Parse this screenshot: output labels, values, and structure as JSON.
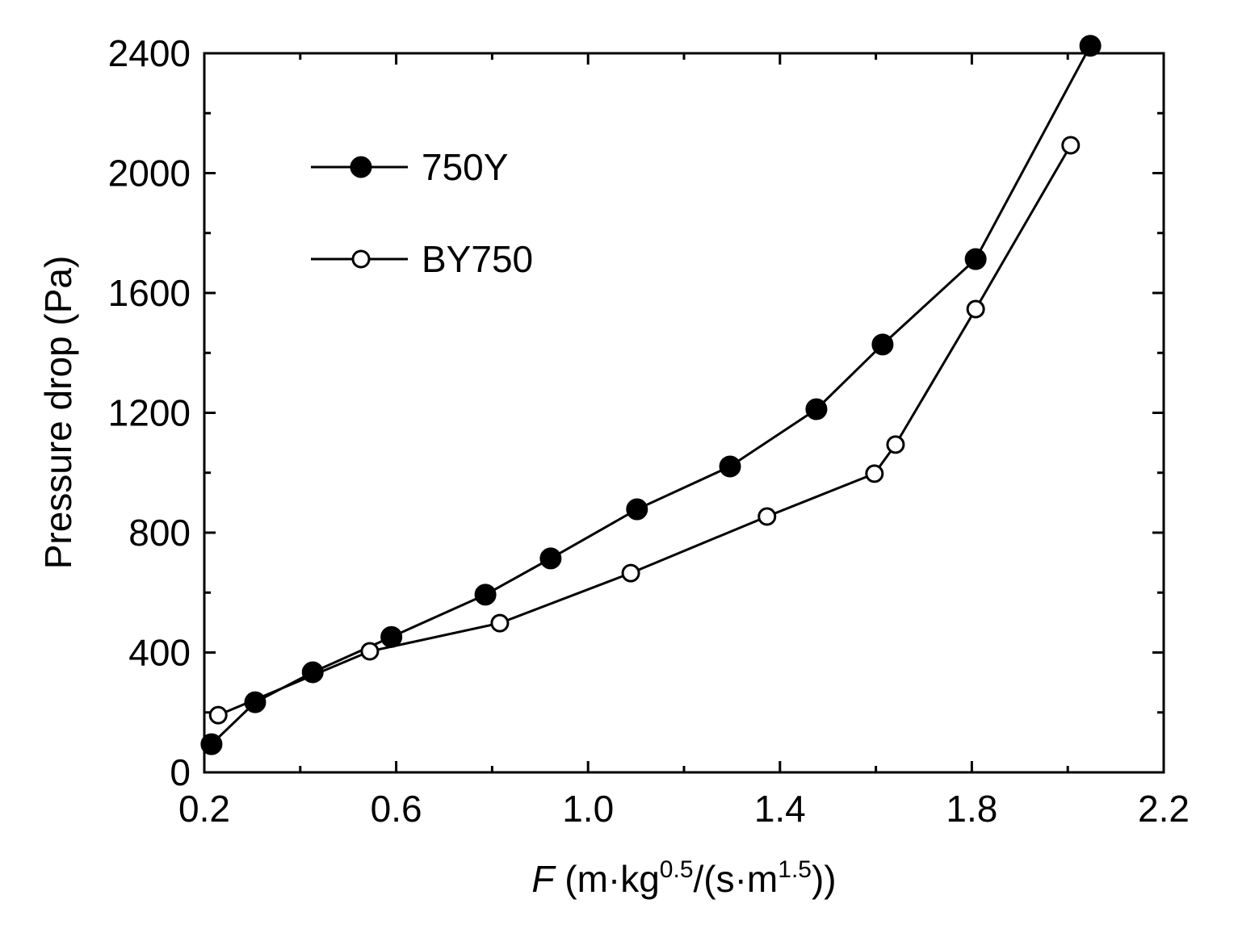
{
  "chart_data": {
    "type": "line",
    "xlabel_italic": "F",
    "xlabel_rest": " (m·kg",
    "xlabel_sup1": "0.5",
    "xlabel_mid": "/(s·m",
    "xlabel_sup2": "1.5",
    "xlabel_end": "))",
    "ylabel": "Pressure drop (Pa)",
    "xlim": [
      0.2,
      2.2
    ],
    "ylim": [
      0,
      2400
    ],
    "xticks": [
      0.2,
      0.6,
      1.0,
      1.4,
      1.8,
      2.2
    ],
    "xtick_labels": [
      "0.2",
      "0.6",
      "1.0",
      "1.4",
      "1.8",
      "2.2"
    ],
    "yticks": [
      0,
      400,
      800,
      1200,
      1600,
      2000,
      2400
    ],
    "ytick_labels": [
      "0",
      "400",
      "800",
      "1200",
      "1600",
      "2000",
      "2400"
    ],
    "grid": false,
    "legend_position": "top-left",
    "series": [
      {
        "name": "750Y",
        "marker": "filled-circle",
        "x": [
          0.215,
          0.306,
          0.426,
          0.59,
          0.786,
          0.922,
          1.102,
          1.296,
          1.476,
          1.614,
          1.808,
          2.047
        ],
        "y": [
          94,
          234,
          334,
          452,
          593,
          714,
          878,
          1021,
          1212,
          1428,
          1713,
          2425
        ]
      },
      {
        "name": "BY750",
        "marker": "open-circle",
        "x": [
          0.229,
          0.545,
          0.816,
          1.089,
          1.373,
          1.597,
          1.641,
          1.808,
          2.006
        ],
        "y": [
          191,
          404,
          498,
          665,
          854,
          997,
          1094,
          1546,
          2093
        ]
      }
    ]
  }
}
